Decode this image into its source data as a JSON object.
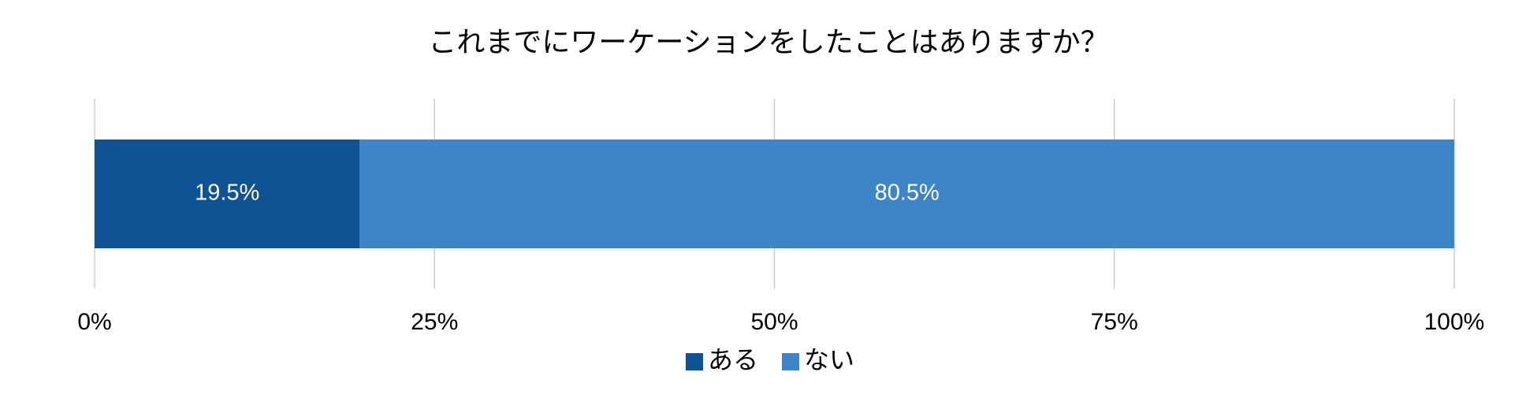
{
  "chart_data": {
    "type": "stacked-bar",
    "orientation": "horizontal",
    "title": "これまでにワーケーションをしたことはありますか？",
    "categories": [
      null
    ],
    "series": [
      {
        "name": "ある",
        "color": "#0f5394",
        "values": [
          19.5
        ],
        "value_labels": [
          "19.5%"
        ]
      },
      {
        "name": "ない",
        "color": "#3d85c6",
        "values": [
          80.5
        ],
        "value_labels": [
          "80.5%"
        ]
      }
    ],
    "xlim": [
      0,
      100
    ],
    "xticks": [
      {
        "value": 0,
        "label": "0%"
      },
      {
        "value": 25,
        "label": "25%"
      },
      {
        "value": 50,
        "label": "50%"
      },
      {
        "value": 75,
        "label": "75%"
      },
      {
        "value": 100,
        "label": "100%"
      }
    ],
    "grid": true,
    "legend": "bottom"
  }
}
